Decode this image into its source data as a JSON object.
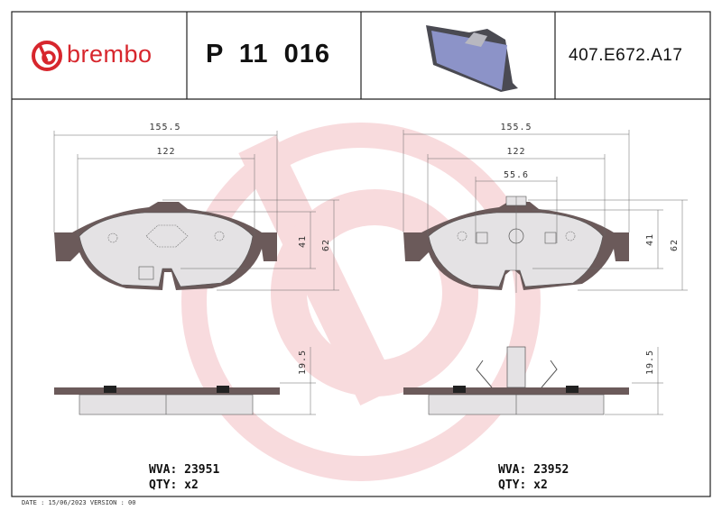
{
  "header": {
    "brand": "brembo",
    "part_number": "P 11 016",
    "reference": "407.E672.A17",
    "brand_color": "#d7262d"
  },
  "left_view": {
    "dim_width_total": "155.5",
    "dim_width_inner": "122",
    "dim_height_inner": "41",
    "dim_height_total": "62",
    "dim_thickness": "19.5",
    "wva_label": "WVA: 23951",
    "qty_label": "QTY: x2"
  },
  "right_view": {
    "dim_width_total": "155.5",
    "dim_width_inner": "122",
    "dim_width_center": "55.6",
    "dim_height_inner": "41",
    "dim_height_total": "62",
    "dim_thickness": "19.5",
    "wva_label": "WVA: 23952",
    "qty_label": "QTY: x2"
  },
  "footer": {
    "text": "DATE : 15/06/2023 VERSION : 00"
  },
  "colors": {
    "backplate": "#6b5a5a",
    "friction": "#e4e2e4",
    "watermark": "#f6d3d6",
    "product_image": "#8c93c8"
  }
}
